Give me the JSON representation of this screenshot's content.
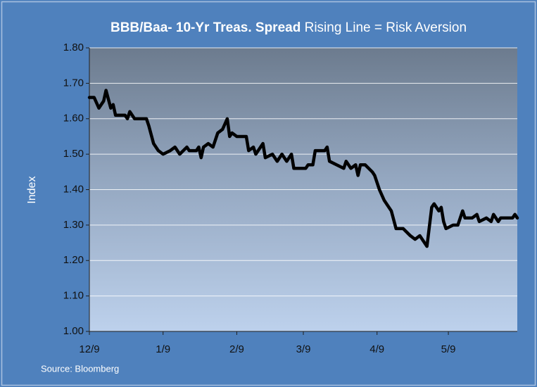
{
  "chart_data": {
    "type": "line",
    "title": "BBB/Baa- 10-Yr Treas. Spread",
    "subtitle": "Rising Line = Risk Aversion",
    "y_label": "Index",
    "source": "Source: Bloomberg",
    "x": [
      "12/9",
      "12/11",
      "12/13",
      "12/15",
      "12/16",
      "12/18",
      "12/19",
      "12/20",
      "12/24",
      "12/25",
      "12/26",
      "12/28",
      "12/31",
      "1/2",
      "1/3",
      "1/5",
      "1/7",
      "1/9",
      "1/12",
      "1/14",
      "1/16",
      "1/19",
      "1/20",
      "1/23",
      "1/24",
      "1/25",
      "1/26",
      "1/28",
      "1/30",
      "2/1",
      "2/3",
      "2/5",
      "2/6",
      "2/7",
      "2/9",
      "2/13",
      "2/14",
      "2/16",
      "2/17",
      "2/20",
      "2/21",
      "2/24",
      "2/26",
      "2/28",
      "3/2",
      "3/4",
      "3/5",
      "3/8",
      "3/10",
      "3/11",
      "3/13",
      "3/14",
      "3/16",
      "3/18",
      "3/19",
      "3/20",
      "3/23",
      "3/26",
      "3/27",
      "3/29",
      "3/31",
      "4/1",
      "4/2",
      "4/4",
      "4/7",
      "4/8",
      "4/10",
      "4/12",
      "4/15",
      "4/17",
      "4/20",
      "4/23",
      "4/25",
      "4/27",
      "4/30",
      "5/2",
      "5/3",
      "5/5",
      "5/6",
      "5/7",
      "5/8",
      "5/11",
      "5/13",
      "5/15",
      "5/16",
      "5/19",
      "5/21",
      "5/22",
      "5/25",
      "5/27",
      "5/28",
      "5/30",
      "5/31",
      "6/5",
      "6/6",
      "6/7"
    ],
    "series": [
      {
        "name": "BBB/Baa- 10-Yr Treas. Spread",
        "color": "#000000",
        "values": [
          1.66,
          1.66,
          1.63,
          1.65,
          1.68,
          1.63,
          1.64,
          1.61,
          1.61,
          1.6,
          1.62,
          1.6,
          1.6,
          1.6,
          1.58,
          1.53,
          1.51,
          1.5,
          1.51,
          1.52,
          1.5,
          1.52,
          1.51,
          1.51,
          1.52,
          1.49,
          1.52,
          1.53,
          1.52,
          1.56,
          1.57,
          1.6,
          1.55,
          1.56,
          1.55,
          1.55,
          1.51,
          1.52,
          1.5,
          1.53,
          1.49,
          1.5,
          1.48,
          1.5,
          1.48,
          1.5,
          1.46,
          1.46,
          1.46,
          1.47,
          1.47,
          1.51,
          1.51,
          1.51,
          1.52,
          1.48,
          1.47,
          1.46,
          1.48,
          1.46,
          1.47,
          1.44,
          1.47,
          1.47,
          1.45,
          1.44,
          1.4,
          1.37,
          1.34,
          1.29,
          1.29,
          1.27,
          1.26,
          1.27,
          1.24,
          1.35,
          1.36,
          1.34,
          1.35,
          1.31,
          1.29,
          1.3,
          1.3,
          1.34,
          1.32,
          1.32,
          1.33,
          1.31,
          1.32,
          1.31,
          1.33,
          1.31,
          1.32,
          1.32,
          1.33,
          1.32
        ]
      }
    ],
    "xlim": [
      "12/9",
      "6/7"
    ],
    "xticks": [
      "12/9",
      "1/9",
      "2/9",
      "3/9",
      "4/9",
      "5/9"
    ],
    "ylim": [
      1.0,
      1.8
    ],
    "yticks": [
      {
        "value": 1.0,
        "label": "1.00"
      },
      {
        "value": 1.1,
        "label": "1.10"
      },
      {
        "value": 1.2,
        "label": "1.20"
      },
      {
        "value": 1.3,
        "label": "1.30"
      },
      {
        "value": 1.4,
        "label": "1.40"
      },
      {
        "value": 1.5,
        "label": "1.50"
      },
      {
        "value": 1.6,
        "label": "1.60"
      },
      {
        "value": 1.7,
        "label": "1.70"
      },
      {
        "value": 1.8,
        "label": "1.80"
      }
    ],
    "grid": true
  }
}
